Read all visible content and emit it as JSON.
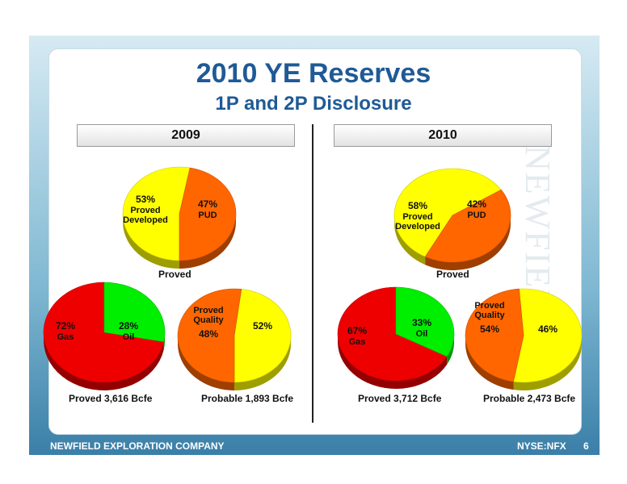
{
  "title": "2010 YE Reserves",
  "subtitle": "1P and 2P Disclosure",
  "watermark": "NEWFIELD",
  "footer": {
    "company": "NEWFIELD EXPLORATION COMPANY",
    "ticker": "NYSE:NFX",
    "page": "6"
  },
  "colors": {
    "yellow": "#ffff00",
    "orange": "#ff6600",
    "red": "#ee0000",
    "green": "#00ee00",
    "title_blue": "#1f5a96"
  },
  "chart_data": [
    {
      "type": "pie",
      "title": "",
      "caption": "Proved",
      "panel": "2009",
      "slices": [
        {
          "label": "Proved Developed",
          "value": 53,
          "pct": "53%",
          "color": "#ffff00"
        },
        {
          "label": "PUD",
          "value": 47,
          "pct": "47%",
          "color": "#ff6600"
        }
      ]
    },
    {
      "type": "pie",
      "caption": "Proved 3,616 Bcfe",
      "panel": "2009",
      "slices": [
        {
          "label": "Gas",
          "value": 72,
          "pct": "72%",
          "color": "#ee0000"
        },
        {
          "label": "Oil",
          "value": 28,
          "pct": "28%",
          "color": "#00ee00"
        }
      ]
    },
    {
      "type": "pie",
      "caption": "Probable 1,893 Bcfe",
      "panel": "2009",
      "slices": [
        {
          "label": "Proved Quality",
          "value": 48,
          "pct": "48%",
          "color": "#ffff00"
        },
        {
          "label": "",
          "value": 52,
          "pct": "52%",
          "color": "#ff6600"
        }
      ]
    },
    {
      "type": "pie",
      "caption": "Proved",
      "panel": "2010",
      "slices": [
        {
          "label": "Proved Developed",
          "value": 58,
          "pct": "58%",
          "color": "#ffff00"
        },
        {
          "label": "PUD",
          "value": 42,
          "pct": "42%",
          "color": "#ff6600"
        }
      ]
    },
    {
      "type": "pie",
      "caption": "Proved 3,712 Bcfe",
      "panel": "2010",
      "slices": [
        {
          "label": "Gas",
          "value": 67,
          "pct": "67%",
          "color": "#ee0000"
        },
        {
          "label": "Oil",
          "value": 33,
          "pct": "33%",
          "color": "#00ee00"
        }
      ]
    },
    {
      "type": "pie",
      "caption": "Probable 2,473 Bcfe",
      "panel": "2010",
      "slices": [
        {
          "label": "Proved Quality",
          "value": 54,
          "pct": "54%",
          "color": "#ffff00"
        },
        {
          "label": "",
          "value": 46,
          "pct": "46%",
          "color": "#ff6600"
        }
      ]
    }
  ]
}
